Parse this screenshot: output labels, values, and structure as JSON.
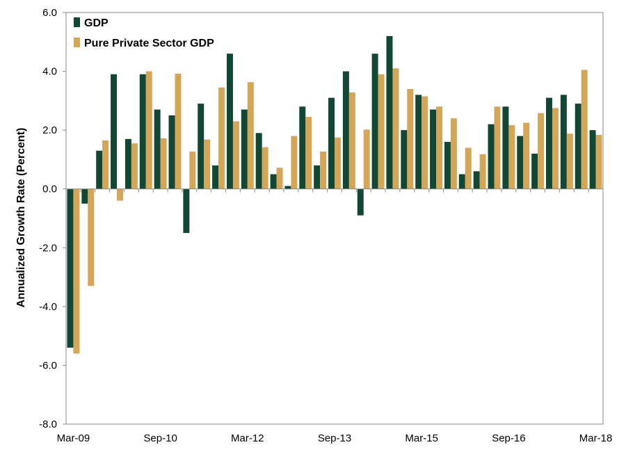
{
  "chart_data": {
    "type": "bar",
    "ylabel": "Annualized Growth Rate (Percent)",
    "ylim": [
      -8,
      6
    ],
    "yticks": [
      6,
      4,
      2,
      0,
      -2,
      -4,
      -6,
      -8
    ],
    "ytick_labels": [
      "6.0",
      "4.0",
      "2.0",
      "0.0",
      "-2.0",
      "-4.0",
      "-6.0",
      "-8.0"
    ],
    "x_tick_labels": [
      {
        "index": 0,
        "label": "Mar-09"
      },
      {
        "index": 6,
        "label": "Sep-10"
      },
      {
        "index": 12,
        "label": "Mar-12"
      },
      {
        "index": 18,
        "label": "Sep-13"
      },
      {
        "index": 24,
        "label": "Mar-15"
      },
      {
        "index": 30,
        "label": "Sep-16"
      },
      {
        "index": 36,
        "label": "Mar-18"
      }
    ],
    "categories": [
      "Mar-09",
      "Jun-09",
      "Sep-09",
      "Dec-09",
      "Mar-10",
      "Jun-10",
      "Sep-10",
      "Dec-10",
      "Mar-11",
      "Jun-11",
      "Sep-11",
      "Dec-11",
      "Mar-12",
      "Jun-12",
      "Sep-12",
      "Dec-12",
      "Mar-13",
      "Jun-13",
      "Sep-13",
      "Dec-13",
      "Mar-14",
      "Jun-14",
      "Sep-14",
      "Dec-14",
      "Mar-15",
      "Jun-15",
      "Sep-15",
      "Dec-15",
      "Mar-16",
      "Jun-16",
      "Sep-16",
      "Dec-16",
      "Mar-17",
      "Jun-17",
      "Sep-17",
      "Dec-17",
      "Mar-18"
    ],
    "series": [
      {
        "name": "GDP",
        "color": "#124734",
        "values": [
          -5.4,
          -0.5,
          1.3,
          3.9,
          1.7,
          3.9,
          2.7,
          2.5,
          -1.5,
          2.9,
          0.8,
          4.6,
          2.7,
          1.9,
          0.5,
          0.1,
          2.8,
          0.8,
          3.1,
          4.0,
          -0.9,
          4.6,
          5.2,
          2.0,
          3.2,
          2.7,
          1.6,
          0.5,
          0.6,
          2.2,
          2.8,
          1.8,
          1.2,
          3.1,
          3.2,
          2.9,
          2.0
        ]
      },
      {
        "name": "Pure Private Sector GDP",
        "color": "#D4A657",
        "values": [
          -5.6,
          -3.3,
          1.65,
          -0.4,
          1.55,
          4.0,
          1.72,
          3.92,
          1.27,
          1.68,
          3.45,
          2.3,
          3.63,
          1.42,
          0.72,
          1.8,
          2.45,
          1.27,
          1.75,
          3.28,
          2.02,
          3.9,
          4.1,
          3.4,
          3.15,
          2.8,
          2.4,
          1.4,
          1.18,
          2.8,
          2.17,
          2.25,
          2.58,
          2.75,
          1.88,
          4.05,
          1.84
        ]
      }
    ],
    "legend_position": "top-left",
    "grid": false
  }
}
